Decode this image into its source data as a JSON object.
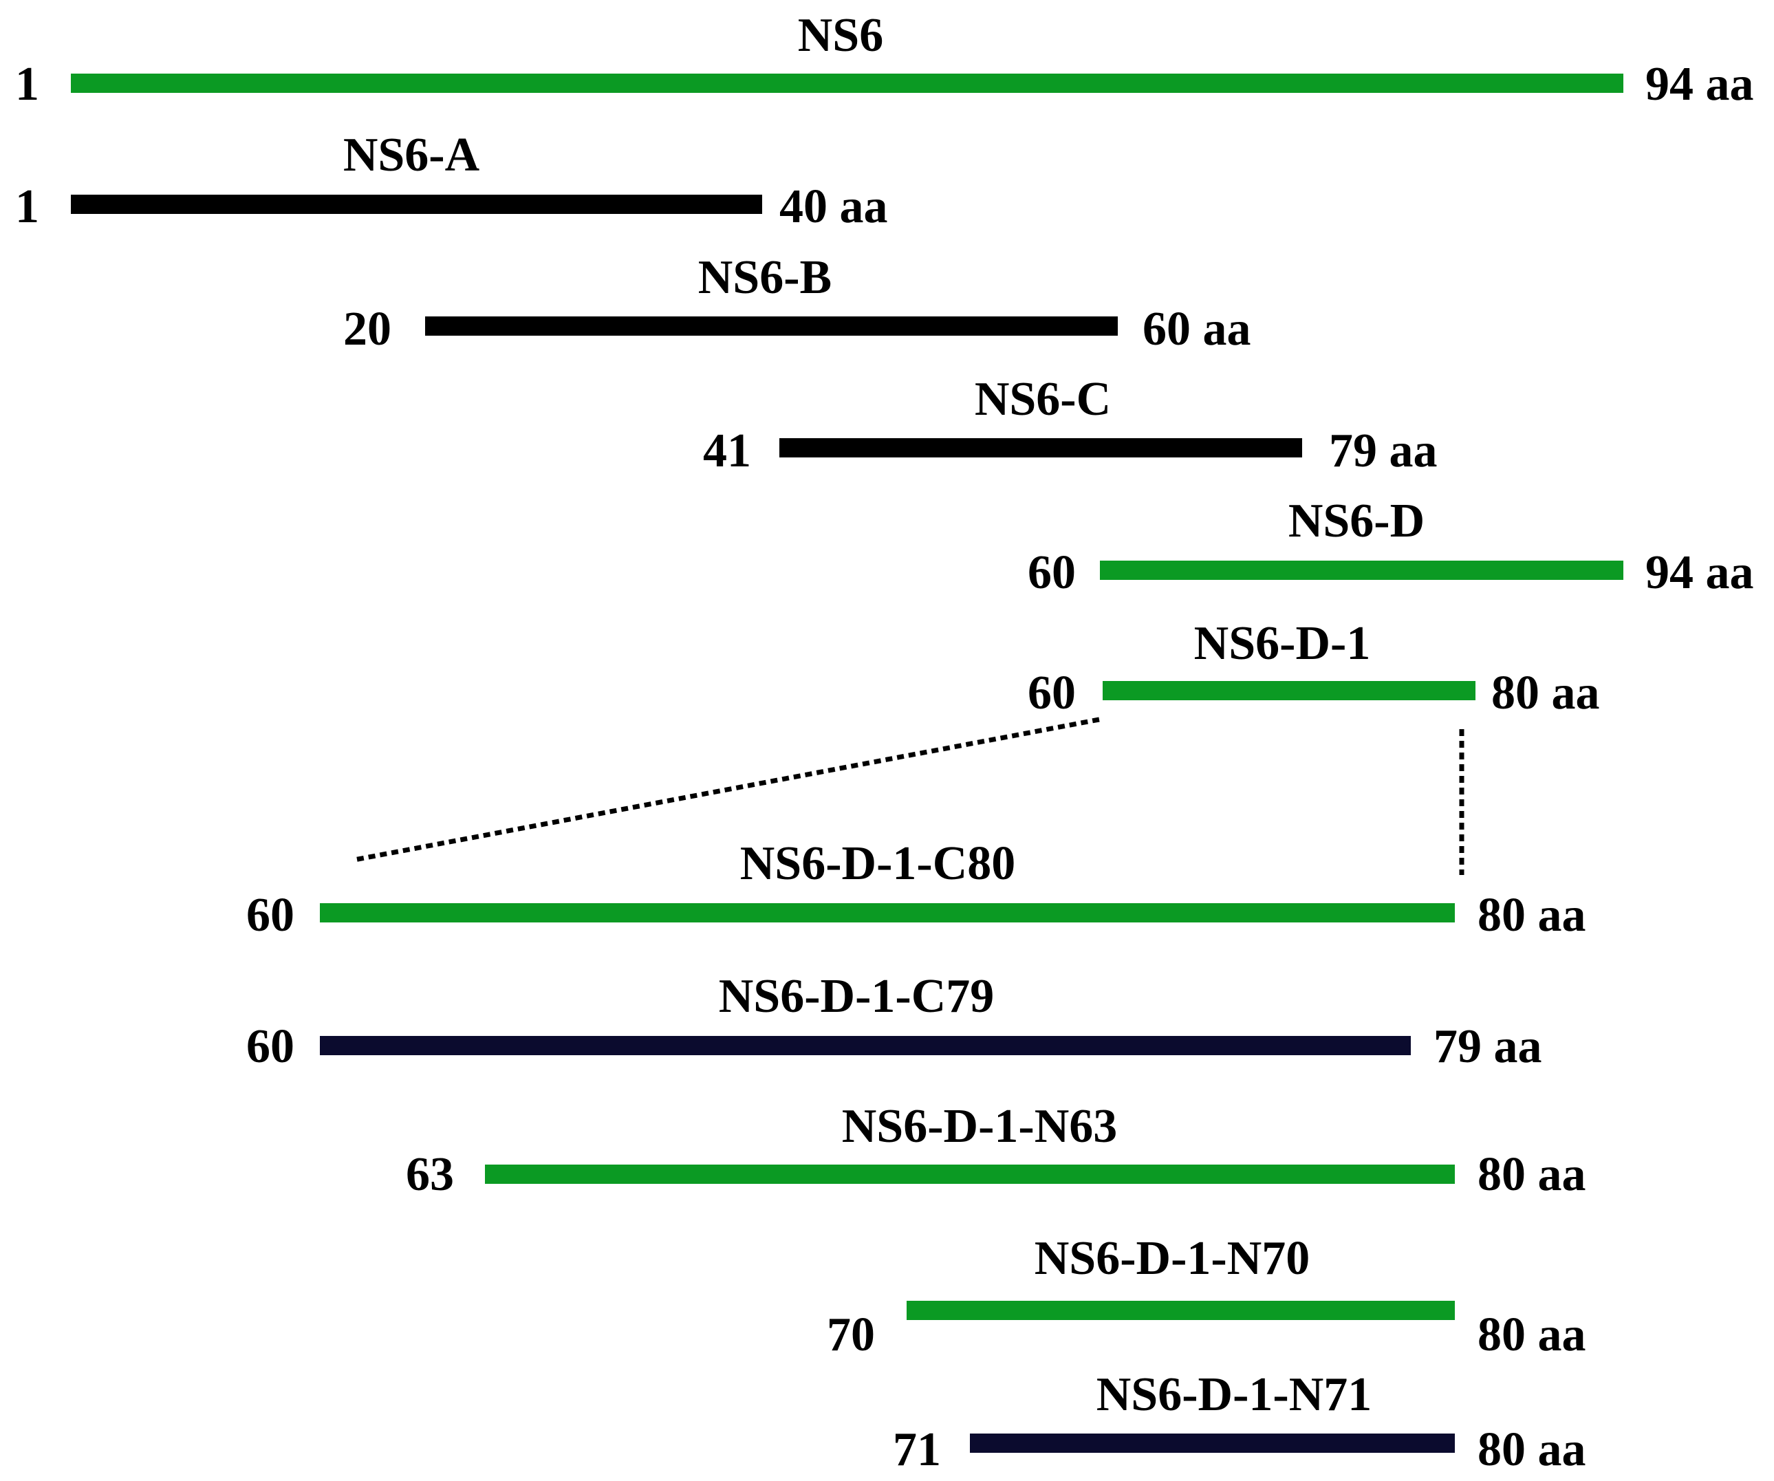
{
  "colors": {
    "green": "#0b9a23",
    "black": "#000000",
    "navy": "#0b0b2e"
  },
  "constructs": [
    {
      "name": "NS6",
      "start_label": "1",
      "end_label": "94 aa",
      "color": "green"
    },
    {
      "name": "NS6-A",
      "start_label": "1",
      "end_label": "40 aa",
      "color": "black"
    },
    {
      "name": "NS6-B",
      "start_label": "20",
      "end_label": "60 aa",
      "color": "black"
    },
    {
      "name": "NS6-C",
      "start_label": "41",
      "end_label": "79 aa",
      "color": "black"
    },
    {
      "name": "NS6-D",
      "start_label": "60",
      "end_label": "94 aa",
      "color": "green"
    },
    {
      "name": "NS6-D-1",
      "start_label": "60",
      "end_label": "80 aa",
      "color": "green"
    },
    {
      "name": "NS6-D-1-C80",
      "start_label": "60",
      "end_label": "80 aa",
      "color": "green"
    },
    {
      "name": "NS6-D-1-C79",
      "start_label": "60",
      "end_label": "79 aa",
      "color": "navy"
    },
    {
      "name": "NS6-D-1-N63",
      "start_label": "63",
      "end_label": "80 aa",
      "color": "green"
    },
    {
      "name": "NS6-D-1-N70",
      "start_label": "70",
      "end_label": "80 aa",
      "color": "green"
    },
    {
      "name": "NS6-D-1-N71",
      "start_label": "71",
      "end_label": "80 aa",
      "color": "navy"
    }
  ]
}
